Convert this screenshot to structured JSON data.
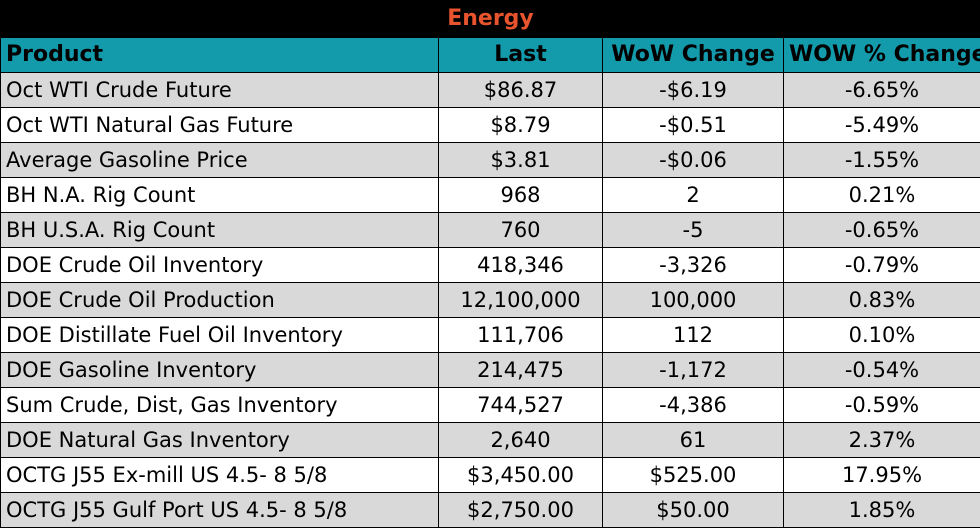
{
  "table": {
    "title": "Energy",
    "headers": [
      "Product",
      "Last",
      "WoW Change",
      "WOW % Change"
    ],
    "rows": [
      [
        "Oct WTI Crude Future",
        "$86.87",
        "-$6.19",
        "-6.65%"
      ],
      [
        "Oct WTI Natural Gas Future",
        "$8.79",
        "-$0.51",
        "-5.49%"
      ],
      [
        "Average Gasoline Price",
        "$3.81",
        "-$0.06",
        "-1.55%"
      ],
      [
        "BH N.A. Rig Count",
        "968",
        "2",
        "0.21%"
      ],
      [
        "BH U.S.A. Rig Count",
        "760",
        "-5",
        "-0.65%"
      ],
      [
        "DOE Crude Oil Inventory",
        "418,346",
        "-3,326",
        "-0.79%"
      ],
      [
        "DOE Crude Oil Production",
        "12,100,000",
        "100,000",
        "0.83%"
      ],
      [
        "DOE Distillate Fuel Oil Inventory",
        "111,706",
        "112",
        "0.10%"
      ],
      [
        "DOE Gasoline Inventory",
        "214,475",
        "-1,172",
        "-0.54%"
      ],
      [
        "Sum Crude, Dist, Gas Inventory",
        "744,527",
        "-4,386",
        "-0.59%"
      ],
      [
        "DOE Natural Gas Inventory",
        "2,640",
        "61",
        "2.37%"
      ],
      [
        "OCTG J55 Ex-mill US 4.5- 8 5/8",
        "$3,450.00",
        "$525.00",
        "17.95%"
      ],
      [
        "OCTG J55 Gulf Port US 4.5- 8 5/8",
        "$2,750.00",
        "$50.00",
        "1.85%"
      ]
    ]
  },
  "colors": {
    "title_bg": "#000000",
    "title_text": "#e8542e",
    "header_bg": "#139aab",
    "row_shaded": "#d9d9d9",
    "row_plain": "#ffffff"
  }
}
